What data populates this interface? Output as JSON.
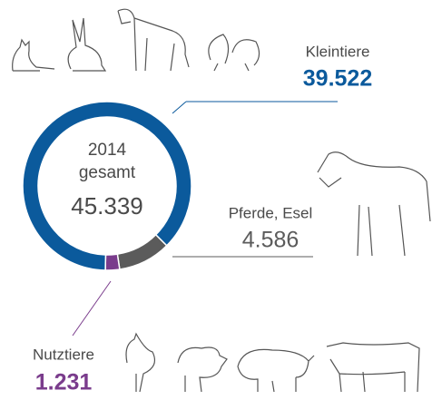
{
  "chart_data": {
    "type": "pie",
    "donut": true,
    "center_text": [
      "2014",
      "gesamt"
    ],
    "total_label": "45.339",
    "categories": [
      "Kleintiere",
      "Pferde, Esel",
      "Nutztiere"
    ],
    "values": [
      39522,
      4586,
      1231
    ],
    "value_labels": [
      "39.522",
      "4.586",
      "1.231"
    ],
    "colors": [
      "#0b5a9c",
      "#5b5b5b",
      "#7a3c8c"
    ]
  }
}
